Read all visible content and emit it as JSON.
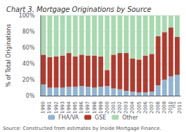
{
  "chart_data": {
    "type": "bar",
    "stacked": true,
    "title": "Chart 3. Mortgage Originations by Source",
    "ylabel": "% of Total Originations",
    "annotations": [
      "Source: Constructed from estimates by Inside Mortgage Finance."
    ],
    "categories": [
      "1990",
      "1991",
      "1992",
      "1993",
      "1994",
      "1995",
      "1996",
      "1997",
      "1998",
      "1999",
      "2000",
      "2001",
      "2002",
      "2003",
      "2004",
      "2005",
      "2006",
      "2007",
      "2008",
      "2009",
      "2010",
      "H1\n2011"
    ],
    "series": [
      {
        "name": "FHA/VA",
        "color": "#92b4d0",
        "values": [
          14,
          10,
          10,
          10,
          11,
          11,
          12,
          11,
          10,
          11,
          12,
          9,
          8,
          6,
          5,
          4,
          4,
          5,
          13,
          20,
          24,
          26
        ]
      },
      {
        "name": "GSE",
        "color": "#b03a2e",
        "values": [
          37,
          38,
          39,
          40,
          42,
          38,
          39,
          39,
          40,
          38,
          20,
          42,
          45,
          47,
          41,
          41,
          46,
          47,
          61,
          59,
          61,
          47
        ]
      },
      {
        "name": "Other",
        "color": "#a8d9b0",
        "values": [
          49,
          52,
          51,
          50,
          47,
          51,
          49,
          50,
          50,
          51,
          68,
          49,
          47,
          47,
          54,
          55,
          50,
          48,
          26,
          21,
          15,
          27
        ]
      }
    ],
    "ylim": [
      0,
      100
    ],
    "yticks": [
      {
        "value": 0,
        "label": "0%"
      },
      {
        "value": 20,
        "label": "20%"
      },
      {
        "value": 40,
        "label": "40%"
      },
      {
        "value": 60,
        "label": "60%"
      },
      {
        "value": 80,
        "label": "80%"
      },
      {
        "value": 100,
        "label": "100%"
      }
    ],
    "grid": true,
    "legend": "bottom"
  }
}
